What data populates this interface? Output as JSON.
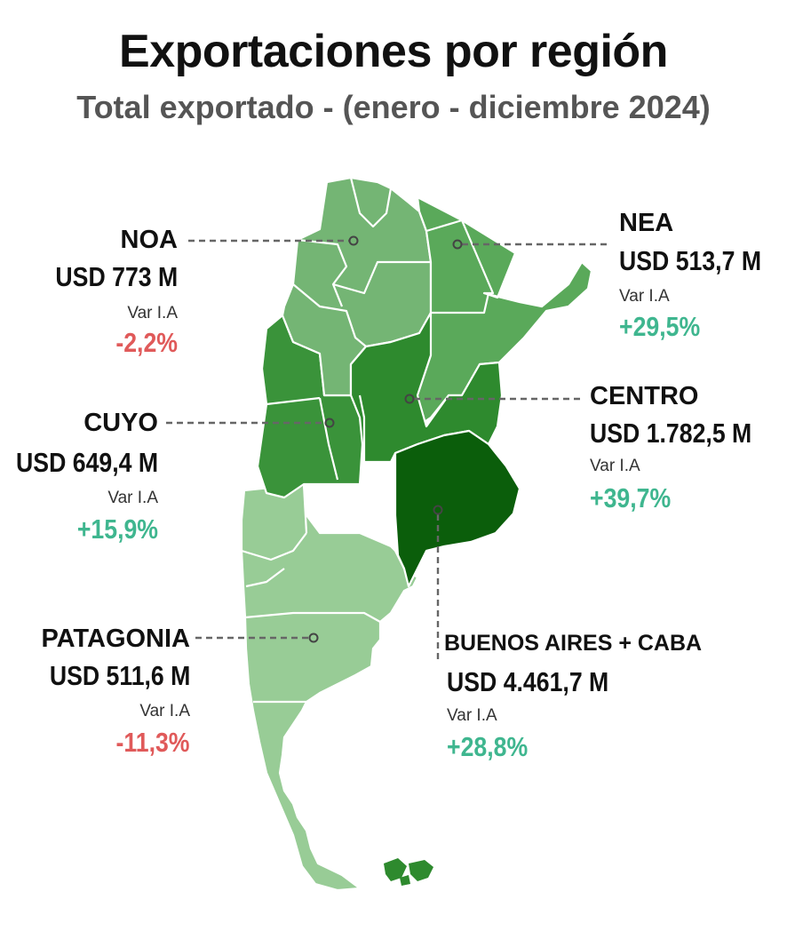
{
  "header": {
    "title": "Exportaciones por región",
    "subtitle": "Total exportado - (enero - diciembre 2024)"
  },
  "colors": {
    "positive": "#3fb68f",
    "negative": "#e05a5a",
    "buenos_aires": "#0b5e0b",
    "centro": "#2e8a2e",
    "cuyo": "#3a933a",
    "nea": "#5aa95a",
    "noa": "#74b574",
    "patagonia": "#98cc96",
    "malvinas": "#2e8a2e"
  },
  "regions": {
    "noa": {
      "name": "NOA",
      "value": "USD 773 M",
      "var_label": "Var I.A",
      "var": "-2,2%"
    },
    "nea": {
      "name": "NEA",
      "value": "USD 513,7 M",
      "var_label": "Var I.A",
      "var": "+29,5%"
    },
    "cuyo": {
      "name": "CUYO",
      "value": "USD 649,4 M",
      "var_label": "Var I.A",
      "var": "+15,9%"
    },
    "centro": {
      "name": "CENTRO",
      "value": "USD 1.782,5 M",
      "var_label": "Var I.A",
      "var": "+39,7%"
    },
    "patagonia": {
      "name": "PATAGONIA",
      "value": "USD 511,6 M",
      "var_label": "Var I.A",
      "var": "-11,3%"
    },
    "buenos_aires": {
      "name": "BUENOS AIRES + CABA",
      "value": "USD 4.461,7 M",
      "var_label": "Var I.A",
      "var": "+28,8%"
    }
  }
}
